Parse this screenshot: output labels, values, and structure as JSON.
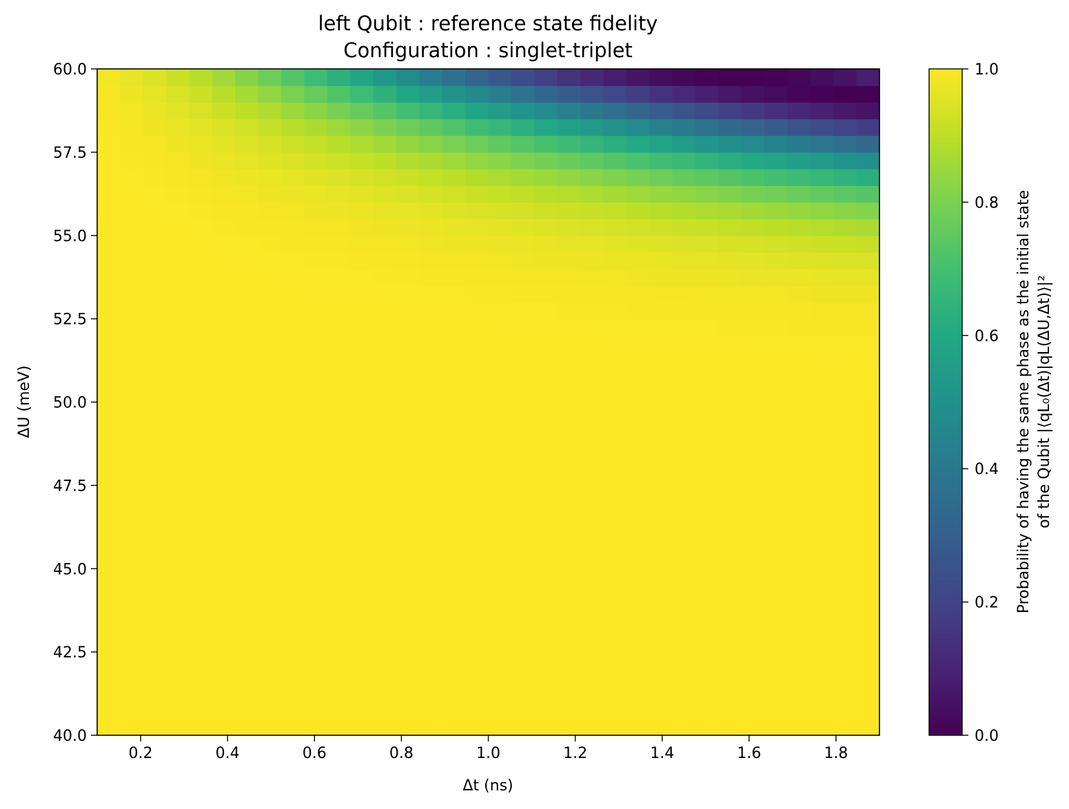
{
  "chart_data": {
    "type": "heatmap",
    "title": "left Qubit : reference state fidelity",
    "subtitle": "Configuration : singlet-triplet",
    "xlabel": "Δt (ns)",
    "ylabel": "ΔU (meV)",
    "xlim": [
      0.1,
      1.9
    ],
    "ylim": [
      40.0,
      60.0
    ],
    "x_ticks": [
      "0.2",
      "0.4",
      "0.6",
      "0.8",
      "1.0",
      "1.2",
      "1.4",
      "1.6",
      "1.8"
    ],
    "y_ticks": [
      "40.0",
      "42.5",
      "45.0",
      "47.5",
      "50.0",
      "52.5",
      "55.0",
      "57.5",
      "60.0"
    ],
    "x_cells": 34,
    "y_cells": 40,
    "colormap": "viridis",
    "colorbar": {
      "label_line1": "Probability of having the same phase as the initial state",
      "label_line2": "of the Qubit |⟨qL₀(Δt)|qL(ΔU,Δt)⟩|²",
      "range": [
        0.0,
        1.0
      ],
      "ticks": [
        "0.0",
        "0.2",
        "0.4",
        "0.6",
        "0.8",
        "1.0"
      ]
    },
    "value_model": "fidelity ≈ 0.5 + 0.5·cos(Δt · 2.15 · ((ΔU − 40)/20)^6.3); cells span Δt ∈ [0.1, 1.9], ΔU ∈ [40, 60]"
  }
}
